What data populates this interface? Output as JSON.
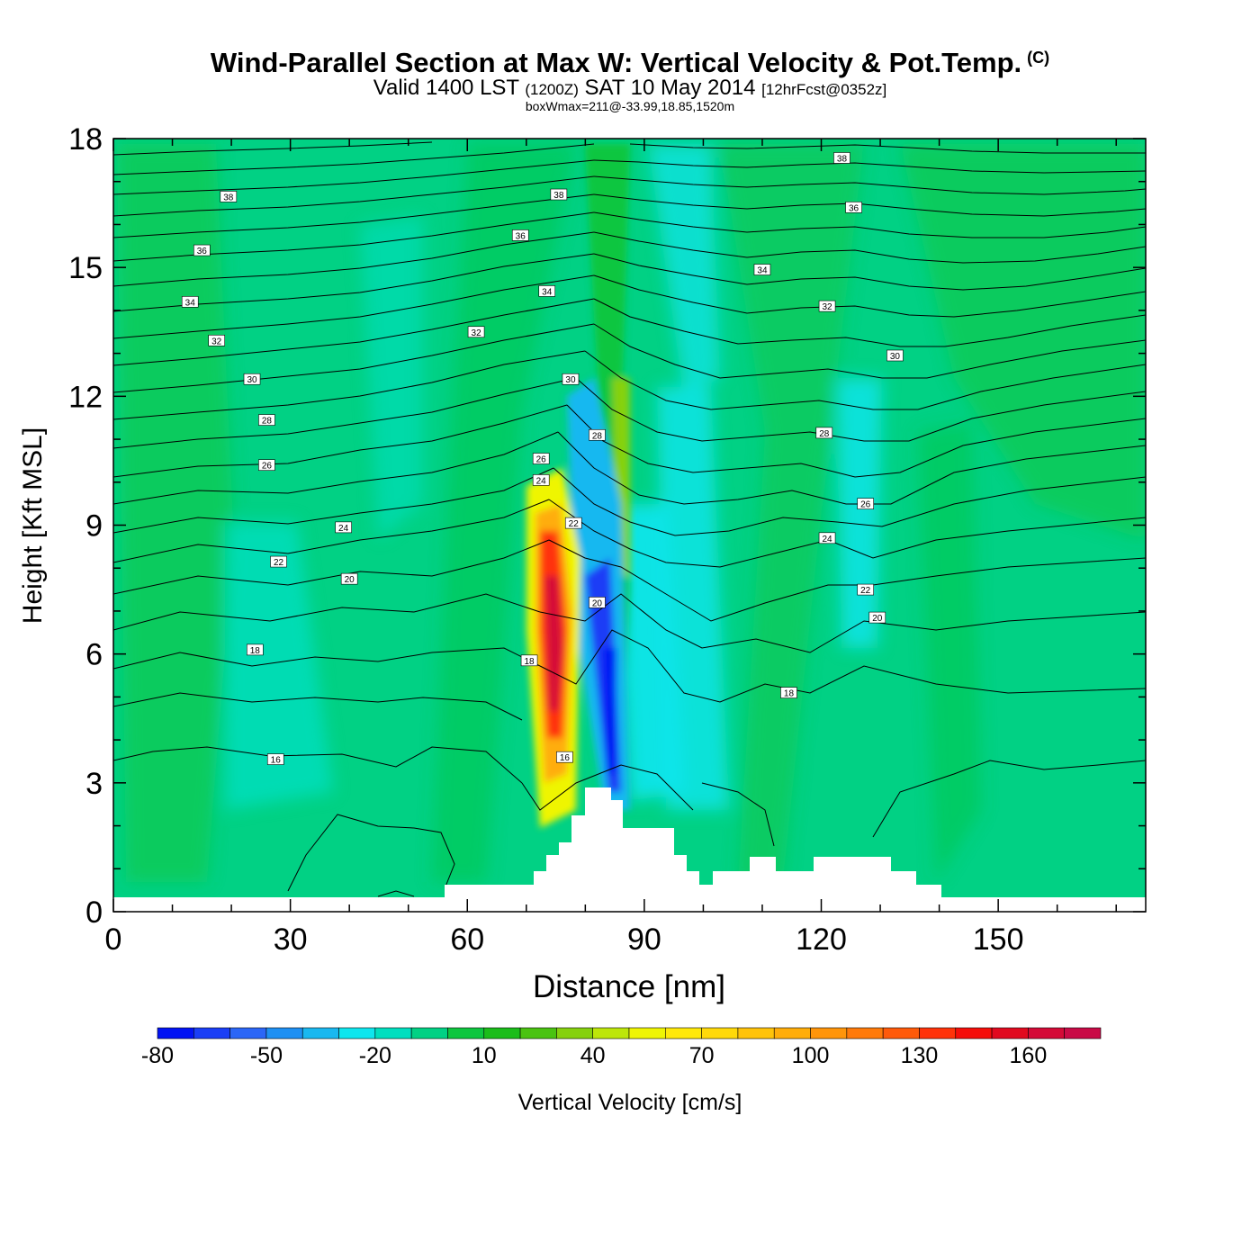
{
  "title": {
    "main": "Wind-Parallel Section at Max W: Vertical Velocity & Pot.Temp.",
    "copyright": "(C)",
    "valid_prefix": "Valid 1400 LST",
    "valid_utc": "(1200Z)",
    "valid_date": "SAT 10 May 2014",
    "forecast": "[12hrFcst@0352z]",
    "box_info": "boxWmax=211@-33.99,18.85,1520m"
  },
  "colors": {
    "background": "#01d184",
    "terrain": "#ffffff",
    "contour": "#000000"
  },
  "chart_data": {
    "type": "heatmap",
    "xlabel": "Distance [nm]",
    "ylabel": "Height [Kft MSL]",
    "xlim": [
      0,
      175
    ],
    "ylim": [
      0,
      18
    ],
    "x_ticks": [
      0,
      30,
      60,
      90,
      120,
      150
    ],
    "y_ticks": [
      0,
      3,
      6,
      9,
      12,
      15,
      18
    ],
    "colorbar": {
      "label": "Vertical Velocity [cm/s]",
      "tick_labels": [
        "-80",
        "-50",
        "-20",
        "10",
        "40",
        "70",
        "100",
        "130",
        "160"
      ],
      "tick_values": [
        -80,
        -50,
        -20,
        10,
        40,
        70,
        100,
        130,
        160
      ],
      "min": -80,
      "max": 180,
      "step": 10,
      "colors": [
        "#0213f4",
        "#1a3ef6",
        "#2b66f7",
        "#1e90f3",
        "#19b8f0",
        "#0ee6ee",
        "#00dfbf",
        "#01d184",
        "#0ec63f",
        "#1bbd1a",
        "#4ac311",
        "#86d10e",
        "#bde60a",
        "#eff503",
        "#ffe90a",
        "#ffd90a",
        "#ffc30a",
        "#ffad0a",
        "#ff950a",
        "#ff7a0a",
        "#ff5a0a",
        "#ff330a",
        "#f50e0a",
        "#e10a1f",
        "#d40a37",
        "#c90a46"
      ]
    },
    "theta_contour_labels": [
      {
        "value": "38",
        "x": 19.5,
        "y": 16.65
      },
      {
        "value": "36",
        "x": 15,
        "y": 15.4
      },
      {
        "value": "34",
        "x": 13,
        "y": 14.2
      },
      {
        "value": "32",
        "x": 17.5,
        "y": 13.3
      },
      {
        "value": "30",
        "x": 23.5,
        "y": 12.4
      },
      {
        "value": "28",
        "x": 26,
        "y": 11.45
      },
      {
        "value": "26",
        "x": 26,
        "y": 10.4
      },
      {
        "value": "24",
        "x": 39,
        "y": 8.95
      },
      {
        "value": "22",
        "x": 28,
        "y": 8.15
      },
      {
        "value": "20",
        "x": 40,
        "y": 7.75
      },
      {
        "value": "18",
        "x": 24,
        "y": 6.1
      },
      {
        "value": "16",
        "x": 27.5,
        "y": 3.55
      },
      {
        "value": "38",
        "x": 75.5,
        "y": 16.7
      },
      {
        "value": "36",
        "x": 69,
        "y": 15.75
      },
      {
        "value": "34",
        "x": 73.5,
        "y": 14.45
      },
      {
        "value": "32",
        "x": 61.5,
        "y": 13.5
      },
      {
        "value": "30",
        "x": 77.5,
        "y": 12.4
      },
      {
        "value": "28",
        "x": 82,
        "y": 11.1
      },
      {
        "value": "26",
        "x": 72.5,
        "y": 10.55
      },
      {
        "value": "24",
        "x": 72.5,
        "y": 10.05
      },
      {
        "value": "22",
        "x": 78,
        "y": 9.05
      },
      {
        "value": "20",
        "x": 82,
        "y": 7.2
      },
      {
        "value": "18",
        "x": 70.5,
        "y": 5.85
      },
      {
        "value": "16",
        "x": 76.5,
        "y": 3.6
      },
      {
        "value": "38",
        "x": 123.5,
        "y": 17.55
      },
      {
        "value": "36",
        "x": 125.5,
        "y": 16.4
      },
      {
        "value": "34",
        "x": 110,
        "y": 14.95
      },
      {
        "value": "32",
        "x": 121,
        "y": 14.1
      },
      {
        "value": "30",
        "x": 132.5,
        "y": 12.95
      },
      {
        "value": "28",
        "x": 120.5,
        "y": 11.15
      },
      {
        "value": "26",
        "x": 127.5,
        "y": 9.5
      },
      {
        "value": "24",
        "x": 121,
        "y": 8.7
      },
      {
        "value": "22",
        "x": 127.5,
        "y": 7.5
      },
      {
        "value": "20",
        "x": 129.5,
        "y": 6.85
      },
      {
        "value": "18",
        "x": 114.5,
        "y": 5.1
      }
    ]
  }
}
